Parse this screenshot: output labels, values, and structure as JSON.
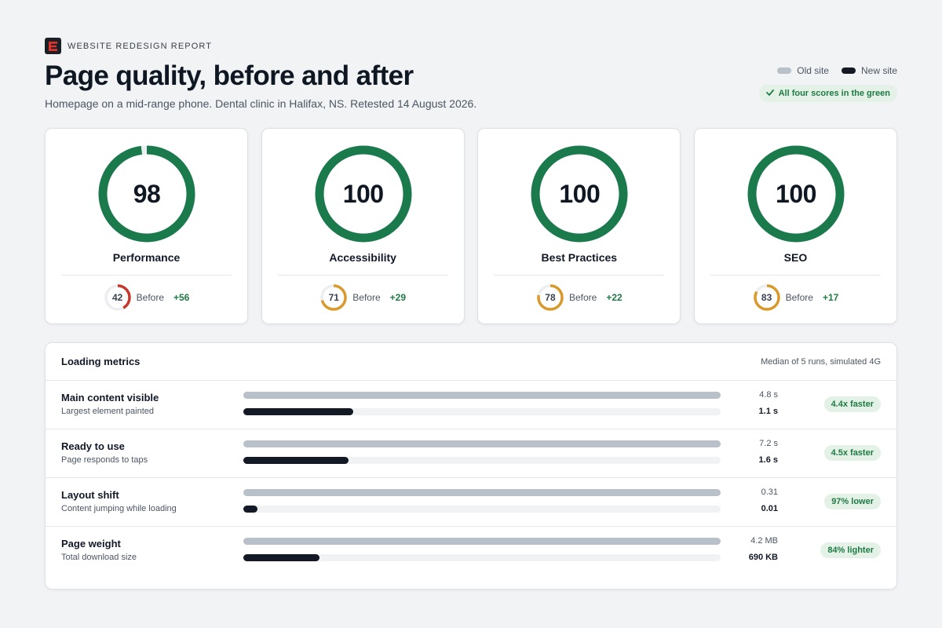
{
  "header": {
    "logo_icon": "brand-e-logo",
    "eyebrow": "WEBSITE REDESIGN REPORT",
    "title": "Page quality, before and after",
    "subtitle": "Homepage on a mid-range phone. Dental clinic in Halifax, NS. Retested 14 August 2026.",
    "legend": [
      {
        "label": "Old site",
        "color": "#b8c0c9"
      },
      {
        "label": "New site",
        "color": "#131a26"
      }
    ],
    "status_pill": "All four scores in the green",
    "status_icon": "check-icon"
  },
  "colors": {
    "good": "#1a7a4c",
    "average": "#d99a2b",
    "poor": "#c8382c",
    "track": "#eceef1"
  },
  "scores": [
    {
      "label": "Performance",
      "after": "98",
      "after_value": 98,
      "before": "42",
      "before_value": 42,
      "before_label": "Before",
      "delta": "+56"
    },
    {
      "label": "Accessibility",
      "after": "100",
      "after_value": 100,
      "before": "71",
      "before_value": 71,
      "before_label": "Before",
      "delta": "+29"
    },
    {
      "label": "Best Practices",
      "after": "100",
      "after_value": 100,
      "before": "78",
      "before_value": 78,
      "before_label": "Before",
      "delta": "+22"
    },
    {
      "label": "SEO",
      "after": "100",
      "after_value": 100,
      "before": "83",
      "before_value": 83,
      "before_label": "Before",
      "delta": "+17"
    }
  ],
  "metrics": {
    "title": "Loading metrics",
    "note": "Median of 5 runs, simulated 4G",
    "rows": [
      {
        "name": "Main content visible",
        "desc": "Largest element painted",
        "old": "4.8 s",
        "new": "1.1 s",
        "old_fraction": 1.0,
        "new_fraction": 0.23,
        "badge": "4.4x faster"
      },
      {
        "name": "Ready to use",
        "desc": "Page responds to taps",
        "old": "7.2 s",
        "new": "1.6 s",
        "old_fraction": 1.0,
        "new_fraction": 0.22,
        "badge": "4.5x faster"
      },
      {
        "name": "Layout shift",
        "desc": "Content jumping while loading",
        "old": "0.31",
        "new": "0.01",
        "old_fraction": 1.0,
        "new_fraction": 0.03,
        "badge": "97% lower"
      },
      {
        "name": "Page weight",
        "desc": "Total download size",
        "old": "4.2 MB",
        "new": "690 KB",
        "old_fraction": 1.0,
        "new_fraction": 0.16,
        "badge": "84% lighter"
      }
    ]
  }
}
